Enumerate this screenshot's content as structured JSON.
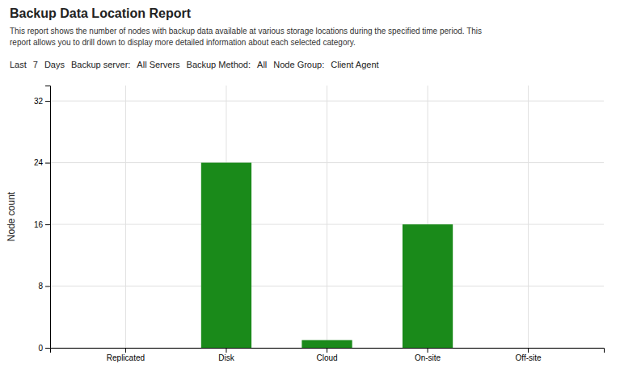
{
  "chart_data": {
    "type": "bar",
    "title": "Backup Data Location Report",
    "subtitle": [
      "This report shows the number of nodes with backup data available at various storage locations during the specified time period. This",
      "report allows you to drill down to display more detailed information about each selected category."
    ],
    "annotations": [
      "Last",
      "7",
      "Days",
      "Backup server:",
      "All Servers",
      "Backup Method:",
      "All",
      "Node Group:",
      "Client Agent"
    ],
    "categories": [
      "Replicated",
      "Disk",
      "Cloud",
      "On-site",
      "Off-site"
    ],
    "values": [
      0,
      24,
      1,
      16,
      0
    ],
    "color": "#1a8a1a",
    "ylabel": "Node count",
    "ylim": [
      0,
      34
    ],
    "yticks": [
      0,
      8,
      16,
      24,
      32
    ],
    "grid": true
  }
}
